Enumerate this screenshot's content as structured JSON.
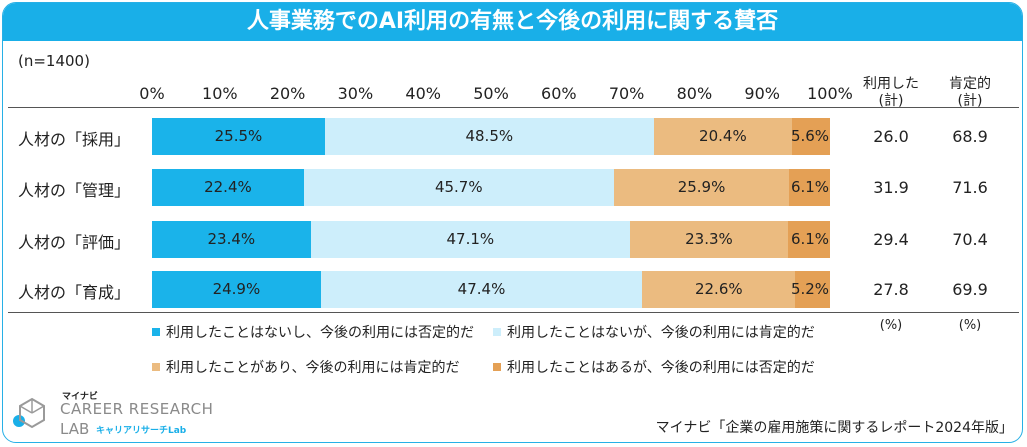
{
  "chart_data": {
    "type": "bar",
    "orientation": "horizontal",
    "stacked": true,
    "title": "人事業務でのAI利用の有無と今後の利用に関する賛否",
    "sample_size": "(n=1400)",
    "x_ticks": [
      "0%",
      "10%",
      "20%",
      "30%",
      "40%",
      "50%",
      "60%",
      "70%",
      "80%",
      "90%",
      "100%"
    ],
    "xlim": [
      0,
      100
    ],
    "categories": [
      "人材の「採用」",
      "人材の「管理」",
      "人材の「評価」",
      "人材の「育成」"
    ],
    "series": [
      {
        "name": "利用したことはないし、今後の利用には否定的だ",
        "color": "#1ab3ea",
        "values": [
          25.5,
          22.4,
          23.4,
          24.9
        ],
        "labels": [
          "25.5%",
          "22.4%",
          "23.4%",
          "24.9%"
        ]
      },
      {
        "name": "利用したことはないが、今後の利用には肯定的だ",
        "color": "#cdeefb",
        "values": [
          48.5,
          45.7,
          47.1,
          47.4
        ],
        "labels": [
          "48.5%",
          "45.7%",
          "47.1%",
          "47.4%"
        ]
      },
      {
        "name": "利用したことがあり、今後の利用には肯定的だ",
        "color": "#ebbb80",
        "values": [
          20.4,
          25.9,
          23.3,
          22.6
        ],
        "labels": [
          "20.4%",
          "25.9%",
          "23.3%",
          "22.6%"
        ]
      },
      {
        "name": "利用したことはあるが、今後の利用には否定的だ",
        "color": "#e4a055",
        "values": [
          5.6,
          6.1,
          6.1,
          5.2
        ],
        "labels": [
          "5.6%",
          "6.1%",
          "6.1%",
          "5.2%"
        ]
      }
    ],
    "side_columns": [
      {
        "header_line1": "利用した",
        "header_line2": "(計)",
        "values": [
          "26.0",
          "31.9",
          "29.4",
          "27.8"
        ],
        "unit": "(%)"
      },
      {
        "header_line1": "肯定的",
        "header_line2": "(計)",
        "values": [
          "68.9",
          "71.6",
          "70.4",
          "69.9"
        ],
        "unit": "(%)"
      }
    ]
  },
  "logo": {
    "top": "マイナビ",
    "line1": "CAREER RESEARCH",
    "line2": "LAB",
    "sub": "キャリアリサーチLab"
  },
  "source": "マイナビ「企業の雇用施策に関するレポート2024年版」"
}
